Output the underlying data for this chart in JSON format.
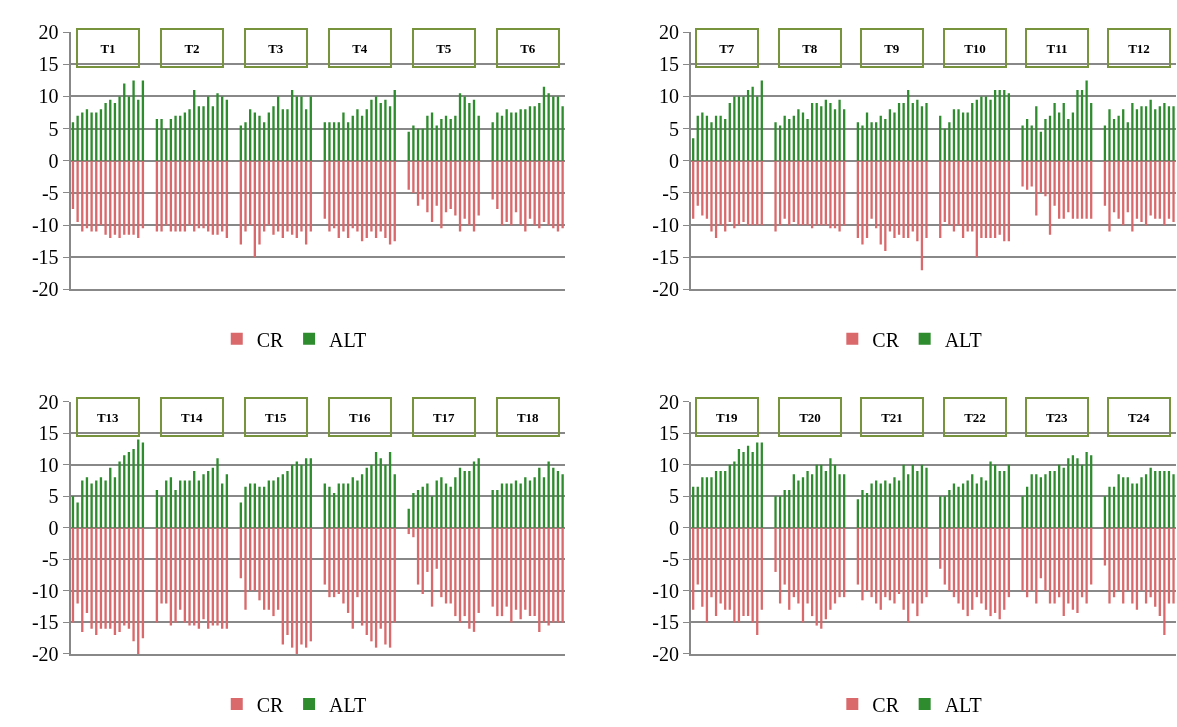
{
  "chart_data": [
    {
      "type": "bar",
      "categories": [
        null,
        null,
        null,
        null,
        null,
        null,
        null,
        null,
        null,
        null,
        null,
        null,
        null,
        null,
        null,
        null,
        null,
        null,
        null,
        null,
        null,
        null,
        null,
        null,
        null,
        null,
        null,
        null,
        null,
        null,
        null,
        null,
        null,
        null,
        null,
        null,
        null,
        null,
        null,
        null,
        null,
        null,
        null,
        null,
        null,
        null,
        null,
        null,
        null,
        null,
        null,
        null,
        null,
        null,
        null,
        null,
        null,
        null,
        null,
        null,
        null,
        null,
        null,
        null,
        null,
        null,
        null,
        null,
        null,
        null,
        null,
        null,
        null,
        null,
        null,
        null,
        null,
        null,
        null,
        null,
        null,
        null,
        null,
        null,
        null,
        null,
        null,
        null,
        null,
        null,
        null,
        null,
        null,
        null,
        null,
        null,
        null,
        null,
        null,
        null,
        null,
        null,
        null,
        null,
        null,
        null
      ],
      "series": [
        {
          "name": "CR",
          "color": "#d9696b",
          "values": [
            -7.5,
            -9.5,
            -11,
            -10.5,
            -11,
            -11,
            -10,
            -11.5,
            -12,
            -11.5,
            -12,
            -11.5,
            -11.5,
            -11.5,
            -12,
            -10.5,
            null,
            null,
            -11,
            -11,
            -10,
            -11,
            -11,
            -11,
            -11,
            -10,
            -11,
            -10.5,
            -10.5,
            -11,
            -11.5,
            -11.5,
            -11,
            -12,
            null,
            null,
            -13,
            -11,
            -10,
            -15,
            -13,
            -11,
            -10,
            -11.5,
            -11,
            -12,
            -11,
            -11.5,
            -12,
            -11,
            -13,
            -11,
            null,
            null,
            -9,
            -11,
            -10.5,
            -12,
            -11,
            -12,
            -10.5,
            -11,
            -12.5,
            -12,
            -11,
            -12,
            -11,
            -12,
            -13,
            -12.5,
            null,
            null,
            -4.5,
            -5,
            -7,
            -6,
            -8,
            -9.5,
            -7,
            -10.5,
            -8,
            -7.5,
            -8.5,
            -11,
            -9,
            -10,
            -11,
            -8.5,
            null,
            null,
            -6,
            -7.5,
            -10,
            -9.5,
            -10,
            -8,
            -10,
            -11,
            -9,
            -10,
            -10.5,
            -9.5,
            -10,
            -10.5,
            -11,
            -10.5
          ]
        },
        {
          "name": "ALT",
          "color": "#2e8b2e",
          "values": [
            6,
            7,
            7.5,
            8,
            7.5,
            7.5,
            8,
            9,
            9.5,
            9,
            10,
            12,
            10,
            12.5,
            9.5,
            12.5,
            null,
            null,
            6.5,
            6.5,
            5,
            6.5,
            7,
            7,
            7.5,
            8,
            11,
            8.5,
            8.5,
            10,
            8.5,
            10.5,
            10,
            9.5,
            null,
            null,
            5.5,
            6,
            8,
            7.5,
            7,
            6,
            7.5,
            8.5,
            10,
            8,
            8,
            11,
            10,
            10,
            8,
            10,
            null,
            null,
            6,
            6,
            6,
            6,
            7.5,
            6,
            7,
            8,
            7,
            8,
            9.5,
            10,
            9,
            9.5,
            8.5,
            11,
            null,
            null,
            4.5,
            5.5,
            5,
            5,
            7,
            7.5,
            5.5,
            6.5,
            7,
            6.5,
            7,
            10.5,
            10,
            9,
            9.5,
            7,
            null,
            null,
            6,
            7.5,
            7,
            8,
            7.5,
            7.5,
            8,
            8,
            8.5,
            8.5,
            9,
            11.5,
            10.5,
            10,
            10,
            8.5
          ]
        }
      ],
      "ylim": [
        -20,
        20
      ],
      "yticks": [
        -20,
        -15,
        -10,
        -5,
        0,
        5,
        10,
        15,
        20
      ],
      "grid": "y",
      "legend": "bottom",
      "tick_labels": "y",
      "annotations": [
        "T1",
        "T2",
        "T3",
        "T4",
        "T5",
        "T6"
      ],
      "stacked": true
    },
    {
      "type": "bar",
      "categories": [
        null,
        null,
        null,
        null,
        null,
        null,
        null,
        null,
        null,
        null,
        null,
        null,
        null,
        null,
        null,
        null,
        null,
        null,
        null,
        null,
        null,
        null,
        null,
        null,
        null,
        null,
        null,
        null,
        null,
        null,
        null,
        null,
        null,
        null,
        null,
        null,
        null,
        null,
        null,
        null,
        null,
        null,
        null,
        null,
        null,
        null,
        null,
        null,
        null,
        null,
        null,
        null,
        null,
        null,
        null,
        null,
        null,
        null,
        null,
        null,
        null,
        null,
        null,
        null,
        null,
        null,
        null,
        null,
        null,
        null,
        null,
        null,
        null,
        null,
        null,
        null,
        null,
        null,
        null,
        null,
        null,
        null,
        null,
        null,
        null,
        null,
        null,
        null,
        null,
        null,
        null,
        null,
        null,
        null,
        null,
        null,
        null,
        null,
        null,
        null,
        null,
        null,
        null,
        null,
        null,
        null
      ],
      "series": [
        {
          "name": "CR",
          "color": "#d9696b",
          "values": [
            -9,
            -7,
            -8.5,
            -9,
            -11,
            -12,
            -10,
            -11,
            -9.5,
            -10.5,
            -10,
            -9.5,
            -10,
            -10,
            -10,
            -10,
            null,
            null,
            -11,
            -10,
            -9,
            -10,
            -9.5,
            -10,
            -10,
            -10,
            -10.5,
            -10,
            -10,
            -10,
            -10.5,
            -10.5,
            -11,
            -10,
            null,
            null,
            -12,
            -13,
            -12,
            -9,
            -10.5,
            -13,
            -14,
            -11,
            -12,
            -11.5,
            -12,
            -12,
            -11,
            -12.5,
            -17,
            -12,
            null,
            null,
            -12,
            -9.5,
            -10,
            -11,
            -10,
            -12,
            -11,
            -11,
            -15,
            -12,
            -12,
            -12,
            -12,
            -11.5,
            -12.5,
            -12.5,
            null,
            null,
            -4,
            -4.5,
            -4,
            -8.5,
            -5,
            -5.5,
            -11.5,
            -7,
            -9,
            -9,
            -8,
            -9,
            -9,
            -9,
            -9,
            -9,
            null,
            null,
            -7,
            -11,
            -8,
            -9,
            -10,
            -8,
            -11,
            -9,
            -9.5,
            -10,
            -8.5,
            -9,
            -9,
            -10,
            -9,
            -9.5
          ]
        },
        {
          "name": "ALT",
          "color": "#2e8b2e",
          "values": [
            3.5,
            7,
            7.5,
            7,
            6,
            7,
            7,
            6.5,
            9,
            10,
            10,
            10,
            11,
            11.5,
            10,
            12.5,
            null,
            null,
            6,
            5.5,
            7,
            6.5,
            7,
            8,
            7.5,
            6.5,
            9,
            9,
            8.5,
            9.5,
            9,
            8,
            9.5,
            8,
            null,
            null,
            6,
            5.5,
            7.5,
            6,
            6,
            7,
            6.5,
            8,
            7.5,
            9,
            9,
            11,
            9,
            9.5,
            8.5,
            9,
            null,
            null,
            7,
            5,
            6,
            8,
            8,
            7.5,
            7.5,
            9,
            9.5,
            10,
            10,
            9.5,
            11,
            11,
            11,
            10.5,
            null,
            null,
            5.5,
            6.5,
            5.5,
            8.5,
            4.5,
            6.5,
            7,
            9,
            7.5,
            9,
            6.5,
            7.5,
            11,
            11,
            12.5,
            9,
            null,
            null,
            5.5,
            8,
            6.5,
            7,
            8,
            6,
            9,
            8,
            8.5,
            8.5,
            9.5,
            8,
            8.5,
            9,
            8.5,
            8.5
          ]
        }
      ],
      "ylim": [
        -20,
        20
      ],
      "yticks": [
        -20,
        -15,
        -10,
        -5,
        0,
        5,
        10,
        15,
        20
      ],
      "grid": "y",
      "legend": "bottom",
      "tick_labels": "y",
      "annotations": [
        "T7",
        "T8",
        "T9",
        "T10",
        "T11",
        "T12"
      ],
      "stacked": true
    },
    {
      "type": "bar",
      "categories": [
        null,
        null,
        null,
        null,
        null,
        null,
        null,
        null,
        null,
        null,
        null,
        null,
        null,
        null,
        null,
        null,
        null,
        null,
        null,
        null,
        null,
        null,
        null,
        null,
        null,
        null,
        null,
        null,
        null,
        null,
        null,
        null,
        null,
        null,
        null,
        null,
        null,
        null,
        null,
        null,
        null,
        null,
        null,
        null,
        null,
        null,
        null,
        null,
        null,
        null,
        null,
        null,
        null,
        null,
        null,
        null,
        null,
        null,
        null,
        null,
        null,
        null,
        null,
        null,
        null,
        null,
        null,
        null,
        null,
        null,
        null,
        null,
        null,
        null,
        null,
        null,
        null,
        null,
        null,
        null,
        null,
        null,
        null,
        null,
        null,
        null,
        null,
        null,
        null,
        null,
        null,
        null,
        null,
        null,
        null,
        null,
        null,
        null,
        null,
        null,
        null,
        null,
        null,
        null,
        null,
        null
      ],
      "series": [
        {
          "name": "CR",
          "color": "#d9696b",
          "values": [
            -15,
            -12,
            -16.5,
            -13.5,
            -16,
            -17,
            -16,
            -16,
            -16,
            -17,
            -16.5,
            -15.5,
            -16,
            -18,
            -20,
            -17.5,
            null,
            null,
            -15,
            -12,
            -12,
            -15.5,
            -15,
            -13,
            -15,
            -15.5,
            -15.5,
            -16,
            -14.5,
            -16,
            -15.5,
            -15.5,
            -16,
            -16,
            null,
            null,
            -8,
            -13,
            -10,
            -10,
            -11.5,
            -13,
            -13,
            -14,
            -13,
            -18.5,
            -17,
            -19,
            -20,
            -18.5,
            -19,
            -18,
            null,
            null,
            -9,
            -11,
            -11,
            -10.5,
            -12,
            -13.5,
            -16,
            -11,
            -15.5,
            -17,
            -18,
            -19,
            -16,
            -18.5,
            -19,
            -15,
            null,
            null,
            -1,
            -1.5,
            -9,
            -10.5,
            -7,
            -12.5,
            -6.5,
            -11,
            -12,
            -12,
            -14,
            -15,
            -14,
            -16,
            -16.5,
            -13.5,
            null,
            null,
            -12.5,
            -14,
            -14,
            -12.5,
            -15,
            -13,
            -14.5,
            -13,
            -14,
            -14,
            -16.5,
            -15,
            -15.5,
            -15,
            -15,
            -15
          ]
        },
        {
          "name": "ALT",
          "color": "#2e8b2e",
          "values": [
            5,
            4,
            7.5,
            8,
            7,
            7.5,
            8,
            7.5,
            9.5,
            8,
            10.5,
            11.5,
            12,
            12.5,
            14,
            13.5,
            null,
            null,
            6,
            5,
            7.5,
            8,
            6,
            7.5,
            7.5,
            7.5,
            9,
            7.5,
            8.5,
            9,
            9.5,
            11,
            7,
            8.5,
            null,
            null,
            4,
            6.5,
            7,
            7,
            6.5,
            6.5,
            7.5,
            7.5,
            8,
            8.5,
            9,
            10,
            10.5,
            10,
            11,
            11,
            null,
            null,
            7,
            6.5,
            5.5,
            7,
            7,
            7,
            8,
            7.5,
            8.5,
            9.5,
            10,
            12,
            11,
            10,
            12,
            8.5,
            null,
            null,
            3,
            5.5,
            6,
            6.5,
            7,
            5,
            7.5,
            8,
            7,
            6.5,
            8,
            9.5,
            9,
            9,
            10.5,
            11,
            null,
            null,
            6,
            6,
            7,
            7,
            7,
            7.5,
            7,
            8,
            7.5,
            8,
            9.5,
            8,
            10.5,
            9.5,
            9,
            8.5
          ]
        }
      ],
      "ylim": [
        -20,
        20
      ],
      "yticks": [
        -20,
        -15,
        -10,
        -5,
        0,
        5,
        10,
        15,
        20
      ],
      "grid": "y",
      "legend": "bottom",
      "tick_labels": "y",
      "annotations": [
        "T13",
        "T14",
        "T15",
        "T16",
        "T17",
        "T18"
      ],
      "stacked": true
    },
    {
      "type": "bar",
      "categories": [
        null,
        null,
        null,
        null,
        null,
        null,
        null,
        null,
        null,
        null,
        null,
        null,
        null,
        null,
        null,
        null,
        null,
        null,
        null,
        null,
        null,
        null,
        null,
        null,
        null,
        null,
        null,
        null,
        null,
        null,
        null,
        null,
        null,
        null,
        null,
        null,
        null,
        null,
        null,
        null,
        null,
        null,
        null,
        null,
        null,
        null,
        null,
        null,
        null,
        null,
        null,
        null,
        null,
        null,
        null,
        null,
        null,
        null,
        null,
        null,
        null,
        null,
        null,
        null,
        null,
        null,
        null,
        null,
        null,
        null,
        null,
        null,
        null,
        null,
        null,
        null,
        null,
        null,
        null,
        null,
        null,
        null,
        null,
        null,
        null,
        null,
        null,
        null,
        null,
        null,
        null,
        null,
        null,
        null,
        null,
        null,
        null,
        null,
        null,
        null,
        null,
        null,
        null,
        null,
        null,
        null
      ],
      "series": [
        {
          "name": "CR",
          "color": "#d9696b",
          "values": [
            -13,
            -9,
            -12.5,
            -15,
            -11,
            -14,
            -12,
            -13,
            -13,
            -15,
            -15,
            -14,
            -14,
            -15,
            -17,
            -13,
            null,
            null,
            -7,
            -12,
            -9,
            -13,
            -11,
            -12,
            -15,
            -12,
            -14,
            -15.5,
            -16,
            -14.5,
            -13,
            -12,
            -11,
            -11,
            null,
            null,
            -9,
            -11.5,
            -10,
            -11,
            -12,
            -13,
            -11,
            -11.5,
            -12,
            -10.5,
            -13,
            -15,
            -12,
            -14,
            -12,
            -11,
            null,
            null,
            -6.5,
            -9,
            -10,
            -11,
            -12,
            -13,
            -14,
            -13,
            -11,
            -12,
            -13,
            -14,
            -13.5,
            -14.5,
            -13,
            -11,
            null,
            null,
            -10,
            -11,
            -10,
            -12,
            -8,
            -10,
            -12,
            -12,
            -11,
            -14,
            -12,
            -13,
            -13.5,
            -11,
            -12,
            -9,
            null,
            null,
            -6,
            -12,
            -11,
            -10,
            -12,
            -10,
            -12,
            -13,
            -10,
            -12,
            -11,
            -12.5,
            -14,
            -17,
            -12,
            -12
          ]
        },
        {
          "name": "ALT",
          "color": "#2e8b2e",
          "values": [
            6.5,
            6.5,
            8,
            8,
            8,
            9,
            9,
            9,
            10,
            10.5,
            12.5,
            12,
            13,
            12,
            13.5,
            13.5,
            null,
            null,
            5,
            5,
            6,
            6,
            8.5,
            7.5,
            8,
            9,
            8.5,
            10,
            10,
            9,
            11,
            10,
            8.5,
            8.5,
            null,
            null,
            4.5,
            6,
            5.5,
            7,
            7.5,
            7,
            7.5,
            7,
            8,
            7.5,
            10,
            8.5,
            10,
            9,
            10,
            9.5,
            null,
            null,
            5,
            5,
            6,
            7,
            6.5,
            7,
            7.5,
            8.5,
            7,
            8,
            7.5,
            10.5,
            10,
            9,
            9,
            10,
            null,
            null,
            5,
            6.5,
            8.5,
            8.5,
            8,
            8.5,
            9,
            9,
            10,
            9.5,
            11,
            11.5,
            11,
            10,
            12,
            11.5,
            null,
            null,
            5,
            6.5,
            6.5,
            8.5,
            8,
            8,
            7,
            7,
            8,
            8.5,
            9.5,
            9,
            9,
            9,
            9,
            8.5
          ]
        }
      ],
      "ylim": [
        -20,
        20
      ],
      "yticks": [
        -20,
        -15,
        -10,
        -5,
        0,
        5,
        10,
        15,
        20
      ],
      "grid": "y",
      "legend": "bottom",
      "tick_labels": "y",
      "annotations": [
        "T19",
        "T20",
        "T21",
        "T22",
        "T23",
        "T24"
      ],
      "stacked": true
    }
  ]
}
